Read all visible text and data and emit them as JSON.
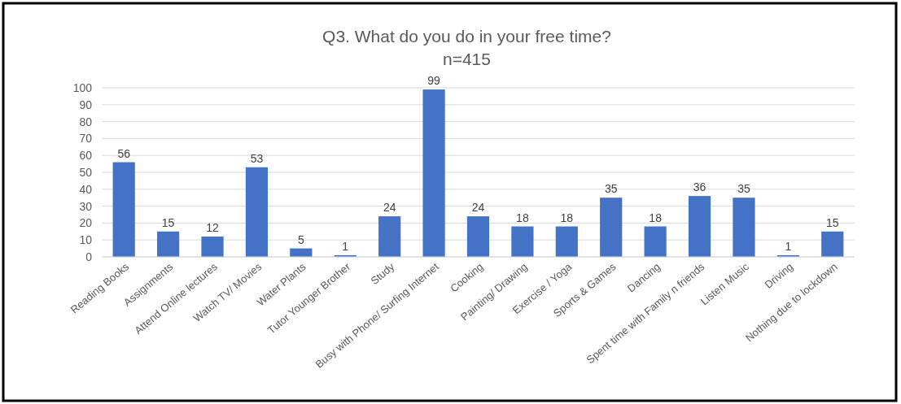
{
  "chart_data": {
    "type": "bar",
    "title": "Q3. What do you do in your free time?",
    "subtitle": "n=415",
    "categories": [
      "Reading Books",
      "Assignments",
      "Attend Online lectures",
      "Watch TV/ Movies",
      "Water Plants",
      "Tutor Younger Brother",
      "Study",
      "Busy with Phone/ Surfing Internet",
      "Cooking",
      "Painting/ Drawing",
      "Exercise / Yoga",
      "Sports & Games",
      "Dancing",
      "Spent time with Family n friends",
      "Listen  Music",
      "Driving",
      "Nothing due to lockdown"
    ],
    "values": [
      56,
      15,
      12,
      53,
      5,
      1,
      24,
      99,
      24,
      18,
      18,
      35,
      18,
      36,
      35,
      1,
      15
    ],
    "color": "#4472c4",
    "ylim": [
      0,
      100
    ],
    "yticks": [
      0,
      10,
      20,
      30,
      40,
      50,
      60,
      70,
      80,
      90,
      100
    ],
    "grid": "y",
    "data_labels": true
  }
}
